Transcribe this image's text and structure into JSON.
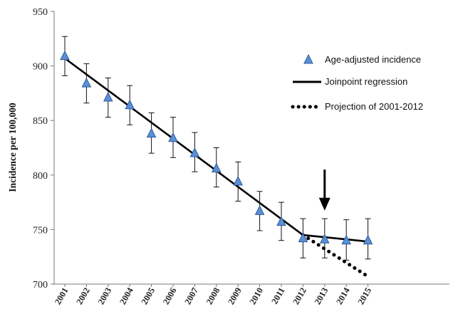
{
  "chart_data": {
    "type": "line",
    "title": "",
    "xlabel": "",
    "ylabel": "Incidence per 100,000",
    "x": [
      "2001",
      "2002",
      "2003",
      "2004",
      "2005",
      "2006",
      "2007",
      "2008",
      "2009",
      "2010",
      "2011",
      "2012",
      "2013",
      "2014",
      "2015"
    ],
    "ylim": [
      700,
      950
    ],
    "yticks": [
      "700",
      "750",
      "800",
      "850",
      "900",
      "950"
    ],
    "series": [
      {
        "name": "Age-adjusted incidence",
        "kind": "scatter",
        "marker": "triangle",
        "color": "#5b8fd6",
        "values": [
          909,
          884,
          871,
          864,
          838,
          834,
          820,
          806,
          794,
          767,
          757,
          742,
          741,
          740,
          740
        ],
        "error_low": [
          891,
          866,
          853,
          846,
          820,
          816,
          803,
          789,
          776,
          749,
          740,
          724,
          724,
          722,
          723
        ],
        "error_high": [
          927,
          902,
          889,
          882,
          857,
          853,
          839,
          825,
          812,
          785,
          775,
          760,
          760,
          759,
          760
        ]
      },
      {
        "name": "Joinpoint regression",
        "kind": "line",
        "color": "#000000",
        "points": [
          [
            "2001",
            907
          ],
          [
            "2012",
            745
          ],
          [
            "2015",
            739
          ]
        ]
      },
      {
        "name": "Projection of 2001-2012",
        "kind": "dotted",
        "color": "#000000",
        "points": [
          [
            "2012",
            745
          ],
          [
            "2015",
            707
          ]
        ]
      }
    ],
    "annotations": [
      {
        "type": "arrow",
        "x": "2013",
        "y_from": 805,
        "y_to": 770
      }
    ],
    "legend": {
      "position": "top-right",
      "entries": [
        "Age-adjusted incidence",
        "Joinpoint regression",
        "Projection of 2001-2012"
      ]
    },
    "grid": false
  }
}
